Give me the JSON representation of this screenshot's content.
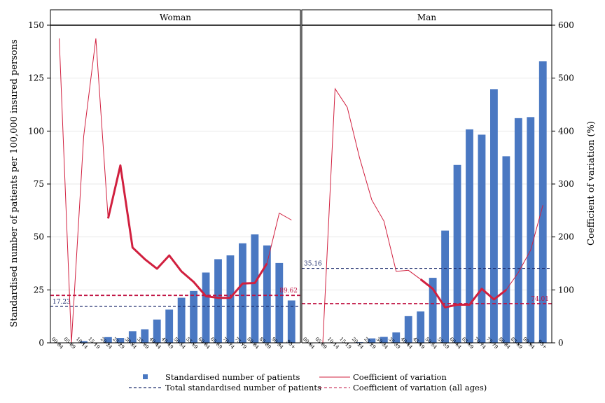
{
  "chart_data": {
    "type": "bar",
    "ylabel_left": "Standardised number of patients per 100,000 insured persons",
    "ylabel_right": "Coefficient of variation (%)",
    "ylim_left": [
      0,
      150
    ],
    "yticks_left": [
      0,
      25,
      50,
      75,
      100,
      125,
      150
    ],
    "ylim_right": [
      0,
      600
    ],
    "yticks_right": [
      0,
      100,
      200,
      300,
      400,
      500,
      600
    ],
    "categories": [
      "00-04",
      "05-09",
      "10-14",
      "15-19",
      "20-24",
      "25-29",
      "30-34",
      "35-39",
      "40-44",
      "45-49",
      "50-54",
      "55-59",
      "60-64",
      "65-69",
      "70-74",
      "75-79",
      "80-84",
      "85-89",
      "90-94",
      "95+"
    ],
    "grid": true,
    "legend_position": "bottom",
    "legend": {
      "bars": "Standardised number of patients",
      "cv": "Coefficient of variation",
      "total": "Total standardised number of patients",
      "cv_all": "Coefficient of variation (all ages)"
    },
    "colors": {
      "bars": "#4a78c2",
      "cv": "#d1203f",
      "total": "#1b2a6b",
      "cv_all": "#c01040"
    },
    "panels": [
      {
        "title": "Woman",
        "patients": [
          0,
          0,
          0.8,
          0,
          2.7,
          2.3,
          5.5,
          6.4,
          11,
          15.7,
          21.3,
          24.5,
          33.2,
          39.5,
          41.3,
          47,
          51.2,
          46,
          37.7,
          20
        ],
        "cv": [
          575,
          0,
          390,
          575,
          235,
          335,
          180,
          158,
          140,
          165,
          135,
          115,
          88,
          85,
          85,
          112,
          113,
          150,
          245,
          232
        ],
        "cv_bold_range": [
          4,
          17
        ],
        "total": 17.23,
        "total_label": "17.23",
        "cv_all": 89.62,
        "cv_all_label": "89.62"
      },
      {
        "title": "Man",
        "patients": [
          0,
          0,
          0.1,
          0,
          0.3,
          2.1,
          2.8,
          4.9,
          12.6,
          14.8,
          30.7,
          53,
          84,
          100.8,
          98.3,
          119.8,
          88.1,
          106.1,
          106.6,
          133
        ],
        "cv": [
          0,
          0,
          480,
          445,
          350,
          270,
          230,
          135,
          137,
          120,
          102,
          67,
          72,
          72,
          102,
          82,
          100,
          133,
          175,
          260
        ],
        "cv_bold_range": [
          9,
          16
        ],
        "total": 35.16,
        "total_label": "35.16",
        "cv_all": 74.01,
        "cv_all_label": "74.01"
      }
    ]
  }
}
